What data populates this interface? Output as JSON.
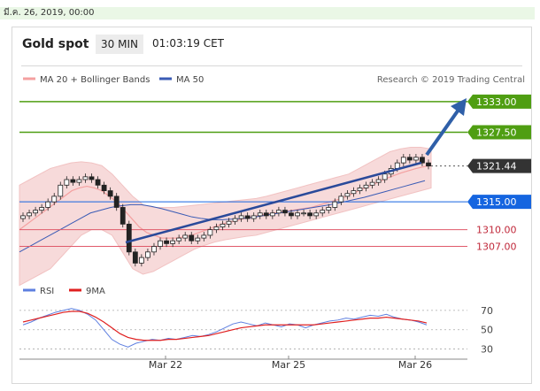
{
  "header": {
    "date": "มี.ค. 26, 2019, 00:00"
  },
  "card": {
    "instrument": "Gold spot",
    "timeframe": "30 MIN",
    "time": "01:03:19 CET"
  },
  "legend": {
    "ma_bb": "MA 20 + Bollinger Bands",
    "ma50": "MA 50",
    "research": "Research © 2019 Trading Central"
  },
  "rsi_legend": {
    "rsi": "RSI",
    "ma": "9MA"
  },
  "colors": {
    "resistance": "#4f9e12",
    "current": "#333333",
    "support_pivot": "#1565e0",
    "support": "#e05a6a",
    "trend": "#2a4a9a",
    "arrow": "#2f5fa8",
    "bollinger": "#f7d6d6",
    "ma20": "#f4a0a0",
    "ma50": "#3a5bb5",
    "rsi": "#5e7fe0",
    "rsi_ma": "#e02020"
  },
  "chart_data": [
    {
      "type": "candlestick",
      "title": "Gold spot",
      "x_ticks": [
        "Mar 22",
        "Mar 25",
        "Mar 26"
      ],
      "ylim": [
        1302,
        1336
      ],
      "levels": [
        {
          "value": 1333.0,
          "label": "1333.00",
          "kind": "resistance"
        },
        {
          "value": 1327.5,
          "label": "1327.50",
          "kind": "resistance"
        },
        {
          "value": 1321.44,
          "label": "1321.44",
          "kind": "current"
        },
        {
          "value": 1315.0,
          "label": "1315.00",
          "kind": "pivot"
        },
        {
          "value": 1310.0,
          "label": "1310.00",
          "kind": "support"
        },
        {
          "value": 1307.0,
          "label": "1307.00",
          "kind": "support"
        }
      ],
      "price_series": [
        1312.5,
        1313,
        1313.5,
        1314,
        1315,
        1316,
        1318,
        1319,
        1318.5,
        1319,
        1319.5,
        1319,
        1318,
        1317,
        1316,
        1314,
        1311,
        1306,
        1304,
        1305,
        1306,
        1307,
        1308,
        1307.5,
        1308,
        1308.5,
        1309,
        1308,
        1308.5,
        1309,
        1310,
        1310.5,
        1311,
        1311.5,
        1312,
        1312.5,
        1312,
        1312.5,
        1313,
        1312.5,
        1313,
        1313.5,
        1313,
        1312.5,
        1313,
        1313,
        1312.5,
        1313,
        1313.5,
        1314,
        1315,
        1316,
        1316.5,
        1317,
        1317.5,
        1318,
        1318.5,
        1319,
        1320,
        1321,
        1322,
        1323,
        1322.5,
        1323,
        1322,
        1321.44
      ],
      "ma20": [
        1310,
        1311,
        1312,
        1313,
        1314,
        1315,
        1316,
        1317,
        1317.5,
        1317.8,
        1317.5,
        1317,
        1316,
        1315,
        1313.5,
        1312,
        1310.5,
        1309.5,
        1309,
        1308.5,
        1308.5,
        1308.5,
        1308.7,
        1309,
        1309.5,
        1310,
        1310.5,
        1311,
        1311.3,
        1311.6,
        1312,
        1312.3,
        1312.6,
        1312.8,
        1313,
        1313.2,
        1313.4,
        1313.6,
        1313.8,
        1314,
        1314.4,
        1314.8,
        1315.2,
        1315.6,
        1316.2,
        1316.8,
        1317.4,
        1318,
        1318.6,
        1319.2,
        1319.7,
        1320.2,
        1320.6,
        1321,
        1321.3,
        1321.6
      ],
      "ma50": [
        1306,
        1307,
        1308,
        1309,
        1310,
        1311,
        1312,
        1313,
        1313.5,
        1314,
        1314.3,
        1314.5,
        1314.5,
        1314.2,
        1313.8,
        1313.3,
        1312.8,
        1312.3,
        1312,
        1311.8,
        1311.8,
        1311.9,
        1312,
        1312.2,
        1312.5,
        1312.8,
        1313.1,
        1313.4,
        1313.7,
        1314,
        1314.3,
        1314.6,
        1315,
        1315.4,
        1315.8,
        1316.3,
        1316.8,
        1317.3,
        1317.8,
        1318.3,
        1318.8
      ],
      "bb_upper": [
        1318,
        1319,
        1320,
        1321,
        1321.5,
        1322,
        1322.2,
        1322,
        1321.5,
        1320,
        1318,
        1316,
        1314.5,
        1314,
        1314,
        1314,
        1314.2,
        1314.4,
        1314.6,
        1314.8,
        1315,
        1315.2,
        1315.4,
        1315.6,
        1316,
        1316.5,
        1317,
        1317.5,
        1318,
        1318.5,
        1319,
        1319.5,
        1320,
        1321,
        1322,
        1323,
        1324,
        1324.5,
        1324.8,
        1324.8,
        1324.5
      ],
      "bb_lower": [
        1300,
        1301,
        1302,
        1303,
        1305,
        1307,
        1309,
        1310,
        1310,
        1309,
        1306,
        1303,
        1302,
        1302.5,
        1303.5,
        1304.5,
        1305.5,
        1306.5,
        1307.2,
        1307.8,
        1308.2,
        1308.5,
        1308.8,
        1309,
        1309.5,
        1310,
        1310.5,
        1311,
        1311.5,
        1312,
        1312.5,
        1313,
        1313.5,
        1314,
        1314.5,
        1315,
        1315.5,
        1316,
        1316.5,
        1317,
        1317.5
      ]
    },
    {
      "type": "line",
      "title": "RSI",
      "ylim": [
        25,
        80
      ],
      "y_ticks": [
        70,
        50,
        30
      ],
      "series": [
        {
          "name": "RSI",
          "values": [
            55,
            58,
            62,
            65,
            68,
            70,
            72,
            70,
            66,
            60,
            50,
            40,
            35,
            32,
            36,
            38,
            40,
            39,
            41,
            40,
            42,
            44,
            43,
            45,
            48,
            52,
            56,
            58,
            56,
            54,
            57,
            55,
            53,
            56,
            55,
            52,
            55,
            57,
            59,
            60,
            62,
            61,
            63,
            65,
            64,
            66,
            63,
            61,
            60,
            58,
            55
          ]
        },
        {
          "name": "9MA",
          "values": [
            58,
            60,
            62,
            64,
            66,
            68,
            69,
            69,
            67,
            63,
            58,
            52,
            46,
            42,
            40,
            39,
            39,
            39,
            40,
            40,
            41,
            42,
            43,
            44,
            46,
            48,
            50,
            52,
            53,
            54,
            55,
            55,
            55,
            55,
            55,
            55,
            55,
            56,
            57,
            58,
            59,
            60,
            61,
            62,
            62,
            63,
            62,
            61,
            60,
            59,
            57
          ]
        }
      ]
    }
  ]
}
